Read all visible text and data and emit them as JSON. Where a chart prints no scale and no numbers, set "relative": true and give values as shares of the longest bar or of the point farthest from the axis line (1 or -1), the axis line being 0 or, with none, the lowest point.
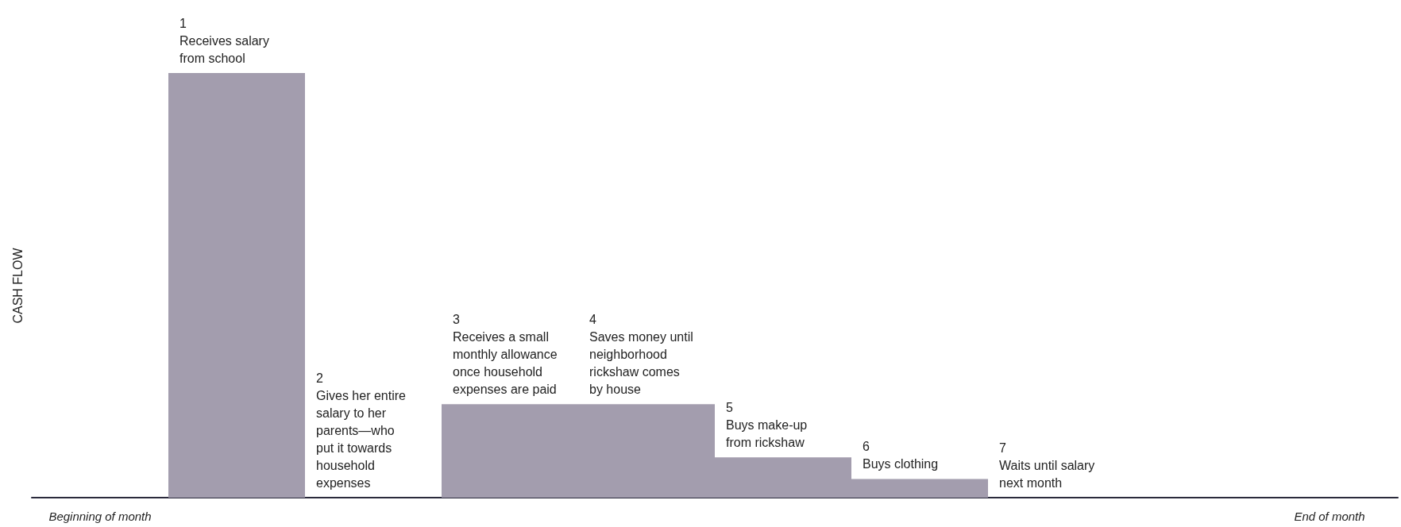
{
  "chart_data": {
    "type": "bar",
    "relative": true,
    "ylabel": "CASH FLOW",
    "color": "#a39dae",
    "categories": [
      "Beginning of month",
      null,
      null,
      null,
      null,
      null,
      null,
      null,
      null,
      "End of month"
    ],
    "values": [
      0,
      1,
      0,
      0.22,
      0.22,
      0.095,
      0.044,
      0,
      0,
      0
    ],
    "annotations": [
      "1\nReceives salary\nfrom school",
      "2\nGives her entire\nsalary to her\nparents—who\nput it towards\nhousehold\nexpenses",
      "3\nReceives a small\nmonthly allowance\nonce household\nexpenses are paid",
      "4\nSaves money until\nneighborhood\nrickshaw comes\nby house",
      "5\nBuys make-up\nfrom rickshaw",
      "6\nBuys clothing",
      "7\nWaits until salary\nnext month"
    ],
    "grid": false
  }
}
